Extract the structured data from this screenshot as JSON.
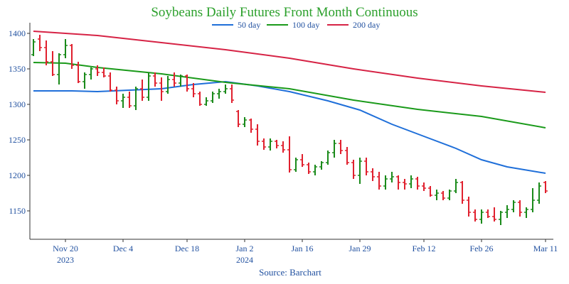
{
  "chart_data": {
    "type": "ohlc",
    "title": "Soybeans Daily Futures Front Month Continuous",
    "source": "Source: Barchart",
    "legend": [
      {
        "name": "50 day",
        "color": "#1f6fd9"
      },
      {
        "name": "100 day",
        "color": "#1a9a1a"
      },
      {
        "name": "200 day",
        "color": "#d62345"
      }
    ],
    "colors": {
      "up": "#1a8a1a",
      "down": "#e0202e"
    },
    "y_ticks": [
      1150,
      1200,
      1250,
      1300,
      1350,
      1400
    ],
    "ylim": [
      1110,
      1415
    ],
    "x_range": [
      0,
      80
    ],
    "x_ticks": [
      {
        "index": 5,
        "label": "Nov 20",
        "sub": "2023"
      },
      {
        "index": 14,
        "label": "Dec 4",
        "sub": ""
      },
      {
        "index": 24,
        "label": "Dec 18",
        "sub": ""
      },
      {
        "index": 33,
        "label": "Jan 2",
        "sub": "2024"
      },
      {
        "index": 42,
        "label": "Jan 16",
        "sub": ""
      },
      {
        "index": 51,
        "label": "Jan 29",
        "sub": ""
      },
      {
        "index": 61,
        "label": "Feb 12",
        "sub": ""
      },
      {
        "index": 70,
        "label": "Feb 26",
        "sub": ""
      },
      {
        "index": 80,
        "label": "Mar 11",
        "sub": ""
      }
    ],
    "candles": [
      [
        0,
        1370,
        1392,
        1368,
        1388
      ],
      [
        1,
        1392,
        1398,
        1375,
        1380
      ],
      [
        2,
        1380,
        1390,
        1355,
        1360
      ],
      [
        3,
        1360,
        1375,
        1340,
        1342
      ],
      [
        4,
        1342,
        1372,
        1328,
        1370
      ],
      [
        5,
        1370,
        1392,
        1365,
        1383
      ],
      [
        6,
        1383,
        1385,
        1350,
        1355
      ],
      [
        7,
        1355,
        1360,
        1330,
        1332
      ],
      [
        8,
        1332,
        1345,
        1322,
        1342
      ],
      [
        9,
        1342,
        1352,
        1335,
        1350
      ],
      [
        10,
        1350,
        1355,
        1340,
        1345
      ],
      [
        11,
        1345,
        1352,
        1338,
        1340
      ],
      [
        12,
        1340,
        1345,
        1318,
        1320
      ],
      [
        13,
        1320,
        1325,
        1300,
        1305
      ],
      [
        14,
        1305,
        1315,
        1295,
        1310
      ],
      [
        15,
        1310,
        1318,
        1295,
        1298
      ],
      [
        16,
        1298,
        1325,
        1292,
        1322
      ],
      [
        17,
        1322,
        1335,
        1305,
        1310
      ],
      [
        18,
        1310,
        1345,
        1305,
        1340
      ],
      [
        19,
        1340,
        1345,
        1325,
        1330
      ],
      [
        20,
        1330,
        1338,
        1305,
        1318
      ],
      [
        21,
        1318,
        1340,
        1315,
        1335
      ],
      [
        22,
        1335,
        1345,
        1325,
        1330
      ],
      [
        23,
        1330,
        1342,
        1325,
        1340
      ],
      [
        24,
        1340,
        1342,
        1318,
        1322
      ],
      [
        25,
        1322,
        1330,
        1310,
        1315
      ],
      [
        26,
        1315,
        1318,
        1298,
        1300
      ],
      [
        27,
        1300,
        1310,
        1298,
        1305
      ],
      [
        28,
        1305,
        1318,
        1302,
        1315
      ],
      [
        29,
        1315,
        1322,
        1308,
        1318
      ],
      [
        30,
        1318,
        1328,
        1315,
        1322
      ],
      [
        31,
        1322,
        1328,
        1302,
        1306
      ],
      [
        32,
        1290,
        1292,
        1268,
        1272
      ],
      [
        33,
        1272,
        1282,
        1268,
        1278
      ],
      [
        34,
        1278,
        1280,
        1260,
        1265
      ],
      [
        35,
        1265,
        1272,
        1242,
        1248
      ],
      [
        36,
        1248,
        1252,
        1236,
        1240
      ],
      [
        37,
        1240,
        1252,
        1235,
        1248
      ],
      [
        38,
        1248,
        1250,
        1238,
        1242
      ],
      [
        39,
        1242,
        1248,
        1232,
        1236
      ],
      [
        40,
        1236,
        1255,
        1204,
        1208
      ],
      [
        41,
        1208,
        1225,
        1205,
        1222
      ],
      [
        42,
        1222,
        1230,
        1212,
        1215
      ],
      [
        43,
        1215,
        1218,
        1202,
        1205
      ],
      [
        44,
        1205,
        1215,
        1200,
        1212
      ],
      [
        45,
        1212,
        1220,
        1208,
        1218
      ],
      [
        46,
        1218,
        1235,
        1215,
        1232
      ],
      [
        47,
        1232,
        1250,
        1225,
        1245
      ],
      [
        48,
        1245,
        1250,
        1230,
        1235
      ],
      [
        49,
        1235,
        1240,
        1215,
        1218
      ],
      [
        50,
        1218,
        1222,
        1195,
        1200
      ],
      [
        51,
        1200,
        1225,
        1188,
        1220
      ],
      [
        52,
        1220,
        1225,
        1200,
        1205
      ],
      [
        53,
        1205,
        1210,
        1192,
        1198
      ],
      [
        54,
        1198,
        1205,
        1180,
        1185
      ],
      [
        55,
        1185,
        1200,
        1180,
        1195
      ],
      [
        56,
        1195,
        1205,
        1190,
        1198
      ],
      [
        57,
        1198,
        1200,
        1180,
        1190
      ],
      [
        58,
        1190,
        1195,
        1180,
        1188
      ],
      [
        59,
        1188,
        1200,
        1182,
        1195
      ],
      [
        60,
        1195,
        1198,
        1180,
        1185
      ],
      [
        61,
        1185,
        1190,
        1178,
        1182
      ],
      [
        62,
        1182,
        1185,
        1170,
        1172
      ],
      [
        63,
        1172,
        1180,
        1165,
        1175
      ],
      [
        64,
        1175,
        1178,
        1165,
        1168
      ],
      [
        65,
        1168,
        1180,
        1165,
        1178
      ],
      [
        66,
        1178,
        1195,
        1175,
        1190
      ],
      [
        67,
        1190,
        1192,
        1160,
        1165
      ],
      [
        68,
        1165,
        1170,
        1142,
        1148
      ],
      [
        69,
        1148,
        1152,
        1135,
        1138
      ],
      [
        70,
        1138,
        1152,
        1132,
        1148
      ],
      [
        71,
        1148,
        1152,
        1140,
        1142
      ],
      [
        72,
        1142,
        1155,
        1135,
        1138
      ],
      [
        73,
        1138,
        1150,
        1130,
        1148
      ],
      [
        74,
        1148,
        1158,
        1140,
        1152
      ],
      [
        75,
        1152,
        1165,
        1148,
        1162
      ],
      [
        76,
        1162,
        1165,
        1142,
        1148
      ],
      [
        77,
        1148,
        1155,
        1140,
        1152
      ],
      [
        78,
        1152,
        1182,
        1148,
        1165
      ],
      [
        79,
        1165,
        1190,
        1160,
        1185
      ],
      [
        80,
        1190,
        1192,
        1175,
        1178
      ]
    ],
    "moving_averages": [
      {
        "name": "50 day",
        "color": "#1f6fd9",
        "points": [
          [
            0,
            1319
          ],
          [
            6,
            1319
          ],
          [
            10,
            1318
          ],
          [
            20,
            1322
          ],
          [
            25,
            1328
          ],
          [
            30,
            1332
          ],
          [
            35,
            1326
          ],
          [
            40,
            1318
          ],
          [
            46,
            1305
          ],
          [
            51,
            1292
          ],
          [
            56,
            1272
          ],
          [
            61,
            1255
          ],
          [
            66,
            1238
          ],
          [
            70,
            1222
          ],
          [
            74,
            1212
          ],
          [
            80,
            1203
          ]
        ]
      },
      {
        "name": "100 day",
        "color": "#1a9a1a",
        "points": [
          [
            0,
            1359
          ],
          [
            5,
            1358
          ],
          [
            10,
            1352
          ],
          [
            20,
            1343
          ],
          [
            30,
            1331
          ],
          [
            40,
            1322
          ],
          [
            50,
            1306
          ],
          [
            60,
            1293
          ],
          [
            70,
            1283
          ],
          [
            80,
            1267
          ]
        ]
      },
      {
        "name": "200 day",
        "color": "#d62345",
        "points": [
          [
            0,
            1403
          ],
          [
            10,
            1397
          ],
          [
            20,
            1387
          ],
          [
            30,
            1377
          ],
          [
            40,
            1365
          ],
          [
            50,
            1350
          ],
          [
            60,
            1337
          ],
          [
            70,
            1326
          ],
          [
            80,
            1317
          ]
        ]
      }
    ]
  }
}
